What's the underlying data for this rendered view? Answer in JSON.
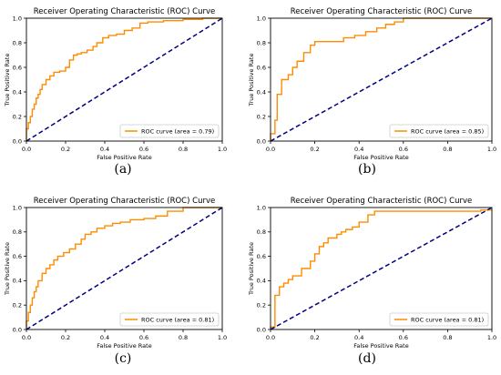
{
  "panel_labels": [
    "(a)",
    "(b)",
    "(c)",
    "(d)"
  ],
  "colors": {
    "roc": "#ff8c00",
    "chance": "#000080",
    "axes": "#000000"
  },
  "chart_data": [
    {
      "type": "line",
      "title": "Receiver Operating Characteristic (ROC) Curve",
      "xlabel": "False Positive Rate",
      "ylabel": "True Positive Rate",
      "xlim": [
        0.0,
        1.0
      ],
      "ylim": [
        0.0,
        1.0
      ],
      "xticks": [
        "0.0",
        "0.2",
        "0.4",
        "0.6",
        "0.8",
        "1.0"
      ],
      "yticks": [
        "0.0",
        "0.2",
        "0.4",
        "0.6",
        "0.8",
        "1.0"
      ],
      "grid": false,
      "legend": "lower-right",
      "series": [
        {
          "name": "ROC curve (area = 0.79)",
          "style": "solid",
          "x": [
            0,
            0,
            0.01,
            0.01,
            0.02,
            0.02,
            0.03,
            0.03,
            0.04,
            0.04,
            0.05,
            0.05,
            0.06,
            0.06,
            0.07,
            0.07,
            0.08,
            0.08,
            0.1,
            0.1,
            0.12,
            0.12,
            0.14,
            0.14,
            0.17,
            0.17,
            0.2,
            0.2,
            0.22,
            0.22,
            0.24,
            0.24,
            0.26,
            0.26,
            0.28,
            0.28,
            0.31,
            0.31,
            0.34,
            0.34,
            0.36,
            0.36,
            0.39,
            0.39,
            0.42,
            0.42,
            0.46,
            0.46,
            0.5,
            0.5,
            0.54,
            0.54,
            0.58,
            0.58,
            0.62,
            0.62,
            0.7,
            0.7,
            0.8,
            0.8,
            0.9,
            0.9,
            1.0
          ],
          "y": [
            0,
            0.1,
            0.1,
            0.15,
            0.15,
            0.2,
            0.2,
            0.26,
            0.26,
            0.3,
            0.3,
            0.35,
            0.35,
            0.38,
            0.38,
            0.42,
            0.42,
            0.46,
            0.46,
            0.5,
            0.5,
            0.53,
            0.53,
            0.56,
            0.56,
            0.57,
            0.57,
            0.6,
            0.6,
            0.66,
            0.66,
            0.7,
            0.7,
            0.71,
            0.71,
            0.72,
            0.72,
            0.74,
            0.74,
            0.77,
            0.77,
            0.8,
            0.8,
            0.84,
            0.84,
            0.86,
            0.86,
            0.87,
            0.87,
            0.9,
            0.9,
            0.92,
            0.92,
            0.96,
            0.96,
            0.97,
            0.97,
            0.98,
            0.98,
            0.99,
            0.99,
            1.0,
            1.0
          ]
        },
        {
          "name": "chance",
          "style": "dashed",
          "x": [
            0,
            1
          ],
          "y": [
            0,
            1
          ]
        }
      ]
    },
    {
      "type": "line",
      "title": "Receiver Operating Characteristic (ROC) Curve",
      "xlabel": "False Positive Rate",
      "ylabel": "True Positive Rate",
      "xlim": [
        0.0,
        1.0
      ],
      "ylim": [
        0.0,
        1.0
      ],
      "xticks": [
        "0.0",
        "0.2",
        "0.4",
        "0.6",
        "0.8",
        "1.0"
      ],
      "yticks": [
        "0.0",
        "0.2",
        "0.4",
        "0.6",
        "0.8",
        "1.0"
      ],
      "grid": false,
      "legend": "lower-right",
      "series": [
        {
          "name": "ROC curve (area = 0.85)",
          "style": "solid",
          "x": [
            0,
            0,
            0.02,
            0.02,
            0.03,
            0.03,
            0.05,
            0.05,
            0.08,
            0.08,
            0.1,
            0.1,
            0.12,
            0.12,
            0.15,
            0.15,
            0.18,
            0.18,
            0.2,
            0.2,
            0.25,
            0.25,
            0.33,
            0.33,
            0.38,
            0.38,
            0.43,
            0.43,
            0.48,
            0.48,
            0.52,
            0.52,
            0.56,
            0.56,
            0.6,
            0.6,
            1.0
          ],
          "y": [
            0,
            0.06,
            0.06,
            0.17,
            0.17,
            0.38,
            0.38,
            0.5,
            0.5,
            0.54,
            0.54,
            0.6,
            0.6,
            0.65,
            0.65,
            0.72,
            0.72,
            0.78,
            0.78,
            0.81,
            0.81,
            0.81,
            0.81,
            0.84,
            0.84,
            0.86,
            0.86,
            0.89,
            0.89,
            0.92,
            0.92,
            0.95,
            0.95,
            0.97,
            0.97,
            1.0,
            1.0
          ]
        },
        {
          "name": "chance",
          "style": "dashed",
          "x": [
            0,
            1
          ],
          "y": [
            0,
            1
          ]
        }
      ]
    },
    {
      "type": "line",
      "title": "Receiver Operating Characteristic (ROC) Curve",
      "xlabel": "False Positive Rate",
      "ylabel": "True Positive Rate",
      "xlim": [
        0.0,
        1.0
      ],
      "ylim": [
        0.0,
        1.0
      ],
      "xticks": [
        "0.0",
        "0.2",
        "0.4",
        "0.6",
        "0.8",
        "1.0"
      ],
      "yticks": [
        "0.0",
        "0.2",
        "0.4",
        "0.6",
        "0.8",
        "1.0"
      ],
      "grid": false,
      "legend": "lower-right",
      "series": [
        {
          "name": "ROC curve (area = 0.81)",
          "style": "solid",
          "x": [
            0,
            0,
            0.01,
            0.01,
            0.02,
            0.02,
            0.03,
            0.03,
            0.04,
            0.04,
            0.05,
            0.05,
            0.06,
            0.06,
            0.08,
            0.08,
            0.1,
            0.1,
            0.12,
            0.12,
            0.14,
            0.14,
            0.16,
            0.16,
            0.19,
            0.19,
            0.22,
            0.22,
            0.25,
            0.25,
            0.28,
            0.28,
            0.3,
            0.3,
            0.33,
            0.33,
            0.36,
            0.36,
            0.4,
            0.4,
            0.44,
            0.44,
            0.48,
            0.48,
            0.53,
            0.53,
            0.6,
            0.6,
            0.66,
            0.66,
            0.72,
            0.72,
            0.8,
            0.8,
            1.0
          ],
          "y": [
            0,
            0.07,
            0.07,
            0.14,
            0.14,
            0.2,
            0.2,
            0.26,
            0.26,
            0.31,
            0.31,
            0.35,
            0.35,
            0.4,
            0.4,
            0.46,
            0.46,
            0.5,
            0.5,
            0.53,
            0.53,
            0.57,
            0.57,
            0.6,
            0.6,
            0.63,
            0.63,
            0.66,
            0.66,
            0.7,
            0.7,
            0.74,
            0.74,
            0.78,
            0.78,
            0.8,
            0.8,
            0.83,
            0.83,
            0.85,
            0.85,
            0.87,
            0.87,
            0.88,
            0.88,
            0.9,
            0.9,
            0.91,
            0.91,
            0.93,
            0.93,
            0.97,
            0.97,
            1.0,
            1.0
          ]
        },
        {
          "name": "chance",
          "style": "dashed",
          "x": [
            0,
            1
          ],
          "y": [
            0,
            1
          ]
        }
      ]
    },
    {
      "type": "line",
      "title": "Receiver Operating Characteristic (ROC) Curve",
      "xlabel": "False Positive Rate",
      "ylabel": "True Positive Rate",
      "xlim": [
        0.0,
        1.0
      ],
      "ylim": [
        0.0,
        1.0
      ],
      "xticks": [
        "0.0",
        "0.2",
        "0.4",
        "0.6",
        "0.8",
        "1.0"
      ],
      "yticks": [
        "0.0",
        "0.2",
        "0.4",
        "0.6",
        "0.8",
        "1.0"
      ],
      "grid": false,
      "legend": "lower-right",
      "series": [
        {
          "name": "ROC curve (area = 0.81)",
          "style": "solid",
          "x": [
            0,
            0,
            0.02,
            0.02,
            0.04,
            0.04,
            0.06,
            0.06,
            0.08,
            0.08,
            0.1,
            0.1,
            0.14,
            0.14,
            0.18,
            0.18,
            0.2,
            0.2,
            0.22,
            0.22,
            0.24,
            0.24,
            0.26,
            0.26,
            0.3,
            0.3,
            0.32,
            0.32,
            0.34,
            0.34,
            0.37,
            0.37,
            0.4,
            0.4,
            0.44,
            0.44,
            0.47,
            0.47,
            0.95,
            0.95,
            1.0
          ],
          "y": [
            0,
            0.02,
            0.02,
            0.28,
            0.28,
            0.35,
            0.35,
            0.38,
            0.38,
            0.41,
            0.41,
            0.44,
            0.44,
            0.5,
            0.5,
            0.56,
            0.56,
            0.62,
            0.62,
            0.68,
            0.68,
            0.71,
            0.71,
            0.75,
            0.75,
            0.78,
            0.78,
            0.8,
            0.8,
            0.82,
            0.82,
            0.84,
            0.84,
            0.88,
            0.88,
            0.94,
            0.94,
            0.97,
            0.97,
            0.98,
            0.98
          ]
        },
        {
          "name": "chance",
          "style": "dashed",
          "x": [
            0,
            1
          ],
          "y": [
            0,
            1
          ]
        }
      ]
    }
  ]
}
